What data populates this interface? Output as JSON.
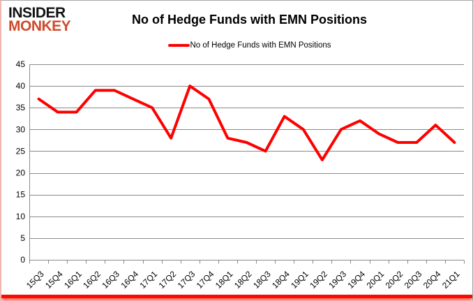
{
  "logo": {
    "line1": "INSIDER",
    "line2": "MONKEY"
  },
  "title": "No of Hedge Funds with EMN Positions",
  "legend": {
    "label": "No of Hedge Funds with EMN Positions",
    "color": "#ff0000"
  },
  "colors": {
    "accent_red": "#fb0a00",
    "logo_red": "#cf4a2c",
    "grid_gray": "#8a8a8a",
    "axis_gray": "#8a8a8a",
    "text_black": "#000000"
  },
  "chart_data": {
    "type": "line",
    "title": "No of Hedge Funds with EMN Positions",
    "xlabel": "",
    "ylabel": "",
    "categories": [
      "15Q3",
      "15Q4",
      "16Q1",
      "16Q2",
      "16Q3",
      "16Q4",
      "17Q1",
      "17Q2",
      "17Q3",
      "17Q4",
      "18Q1",
      "18Q2",
      "18Q3",
      "18Q4",
      "19Q1",
      "19Q2",
      "19Q3",
      "19Q4",
      "20Q1",
      "20Q2",
      "20Q3",
      "20Q4",
      "21Q1"
    ],
    "series": [
      {
        "name": "No of Hedge Funds with EMN Positions",
        "color": "#ff0000",
        "values": [
          37,
          34,
          34,
          39,
          39,
          37,
          35,
          28,
          40,
          37,
          28,
          27,
          25,
          33,
          30,
          23,
          30,
          32,
          29,
          27,
          27,
          31,
          27
        ]
      }
    ],
    "ylim": [
      0,
      45
    ],
    "ytick_step": 5,
    "grid": true,
    "legend_position": "top"
  }
}
